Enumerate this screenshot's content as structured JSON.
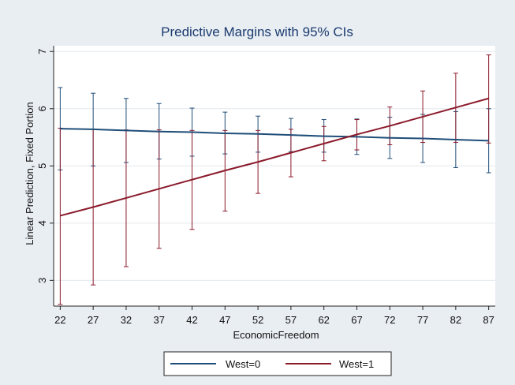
{
  "chart_data": {
    "type": "line",
    "title": "Predictive Margins with 95% CIs",
    "xlabel": "EconomicFreedom",
    "ylabel": "Linear Prediction, Fixed Portion",
    "x": [
      22,
      27,
      32,
      37,
      42,
      47,
      52,
      57,
      62,
      67,
      72,
      77,
      82,
      87
    ],
    "xlim": [
      21,
      88
    ],
    "ylim": [
      2.55,
      7.1
    ],
    "yticks": [
      3,
      4,
      5,
      6,
      7
    ],
    "grid": "horizontal",
    "legend_position": "bottom",
    "series": [
      {
        "name": "West=0",
        "color": "#1f4e79",
        "values": [
          5.65,
          5.64,
          5.62,
          5.6,
          5.59,
          5.57,
          5.56,
          5.54,
          5.52,
          5.51,
          5.49,
          5.48,
          5.46,
          5.44
        ],
        "lower": [
          4.93,
          5.0,
          5.06,
          5.12,
          5.17,
          5.21,
          5.24,
          5.25,
          5.24,
          5.2,
          5.13,
          5.06,
          4.97,
          4.88
        ],
        "upper": [
          6.37,
          6.27,
          6.18,
          6.09,
          6.01,
          5.94,
          5.87,
          5.83,
          5.81,
          5.82,
          5.85,
          5.9,
          5.95,
          6.0
        ]
      },
      {
        "name": "West=1",
        "color": "#8b1a2b",
        "values": [
          4.13,
          4.28,
          4.44,
          4.6,
          4.76,
          4.92,
          5.07,
          5.23,
          5.39,
          5.55,
          5.7,
          5.86,
          6.02,
          6.18
        ],
        "lower": [
          2.58,
          2.92,
          3.24,
          3.56,
          3.89,
          4.21,
          4.52,
          4.81,
          5.09,
          5.28,
          5.37,
          5.41,
          5.41,
          5.4
        ],
        "upper": [
          5.66,
          5.64,
          5.63,
          5.63,
          5.62,
          5.62,
          5.62,
          5.64,
          5.69,
          5.81,
          6.03,
          6.31,
          6.62,
          6.94
        ]
      }
    ]
  }
}
